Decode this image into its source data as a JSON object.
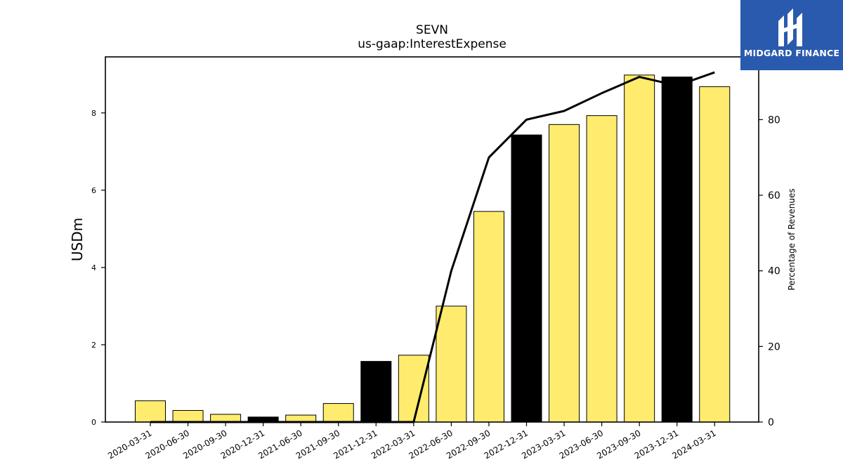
{
  "logo": {
    "text": "MIDGARD FINANCE",
    "bg_color": "#2a5aad"
  },
  "chart_data": {
    "type": "bar",
    "title": "SEVN",
    "subtitle": "us-gaap:InterestExpense",
    "ylabel": "USDm",
    "y2label": "Percentage of Revenues",
    "ylim": [
      0,
      9.45
    ],
    "y2lim": [
      0,
      96.6
    ],
    "yticks": [
      0,
      2,
      4,
      6,
      8
    ],
    "y2ticks": [
      0,
      20,
      40,
      60,
      80
    ],
    "categories": [
      "2020-03-31",
      "2020-06-30",
      "2020-09-30",
      "2020-12-31",
      "2021-06-30",
      "2021-09-30",
      "2021-12-31",
      "2022-03-31",
      "2022-06-30",
      "2022-09-30",
      "2022-12-31",
      "2023-03-31",
      "2023-06-30",
      "2023-09-30",
      "2023-12-31",
      "2024-03-31"
    ],
    "series": [
      {
        "type": "bar",
        "values": [
          0.55,
          0.3,
          0.2,
          0.13,
          0.18,
          0.48,
          1.57,
          1.73,
          3.0,
          5.45,
          7.43,
          7.7,
          7.93,
          8.98,
          8.93,
          8.68
        ],
        "colors": [
          "#ffec6e",
          "#ffec6e",
          "#ffec6e",
          "#000000",
          "#ffec6e",
          "#ffec6e",
          "#000000",
          "#ffec6e",
          "#ffec6e",
          "#ffec6e",
          "#000000",
          "#ffec6e",
          "#ffec6e",
          "#ffec6e",
          "#000000",
          "#ffec6e"
        ]
      },
      {
        "type": "line",
        "axis": "right",
        "color": "#000000",
        "values": [
          0,
          0,
          0,
          0,
          0,
          0,
          0,
          0,
          40,
          70,
          80,
          82.3,
          87,
          91.3,
          89,
          92.5
        ]
      }
    ],
    "grid": false,
    "legend": "none"
  }
}
